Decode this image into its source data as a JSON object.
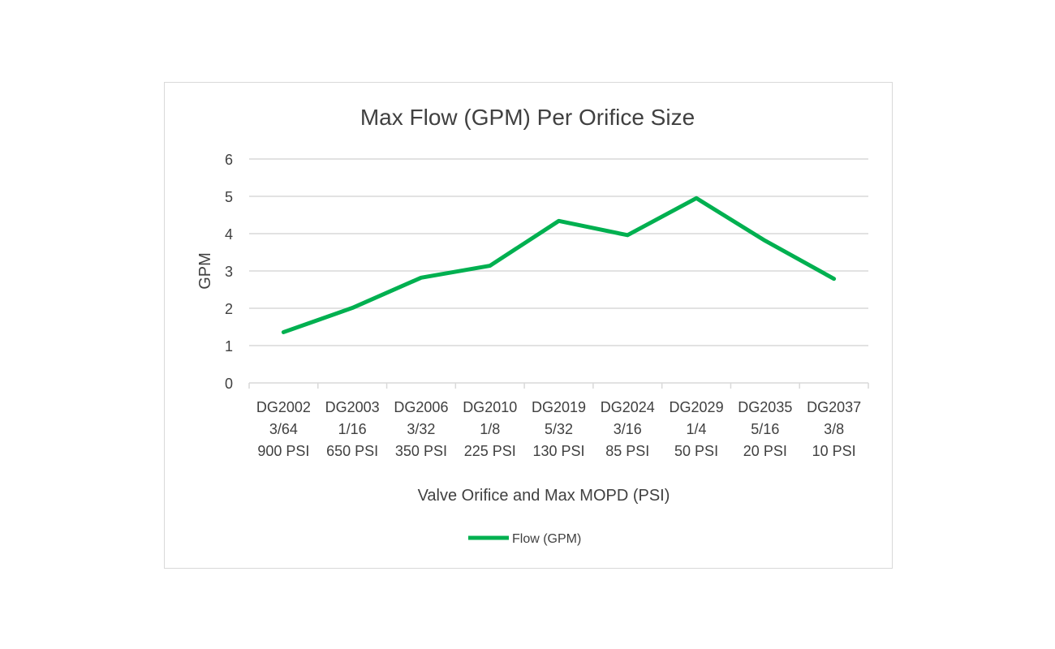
{
  "chart_data": {
    "type": "line",
    "title": "Max Flow (GPM) Per Orifice Size",
    "xlabel": "Valve Orifice and Max MOPD (PSI)",
    "ylabel": "GPM",
    "ylim": [
      0,
      6
    ],
    "yticks": [
      "0",
      "1",
      "2",
      "3",
      "4",
      "5",
      "6"
    ],
    "grid": true,
    "legend_position": "bottom",
    "categories": [
      [
        "DG2002",
        "3/64",
        "900 PSI"
      ],
      [
        "DG2003",
        "1/16",
        "650 PSI"
      ],
      [
        "DG2006",
        "3/32",
        "350 PSI"
      ],
      [
        "DG2010",
        "1/8",
        "225 PSI"
      ],
      [
        "DG2019",
        "5/32",
        "130 PSI"
      ],
      [
        "DG2024",
        "3/16",
        "85 PSI"
      ],
      [
        "DG2029",
        "1/4",
        "50 PSI"
      ],
      [
        "DG2035",
        "5/16",
        "20 PSI"
      ],
      [
        "DG2037",
        "3/8",
        "10 PSI"
      ]
    ],
    "series": [
      {
        "name": "Flow (GPM)",
        "color": "#00b050",
        "values": [
          1.36,
          2.01,
          2.82,
          3.14,
          4.34,
          3.96,
          4.95,
          3.81,
          2.79
        ]
      }
    ]
  }
}
